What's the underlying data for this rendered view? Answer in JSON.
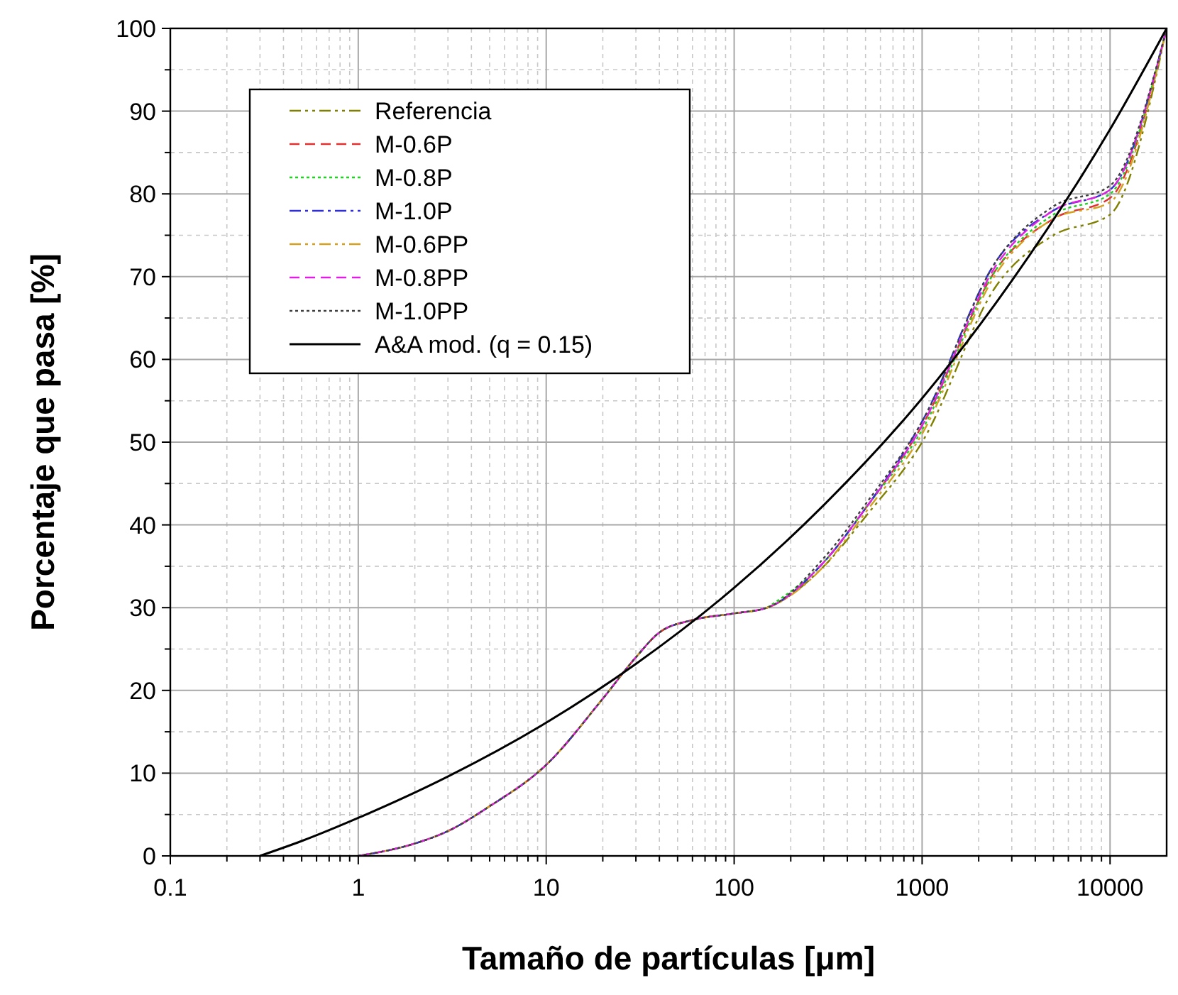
{
  "chart_data": {
    "type": "line",
    "xlabel": "Tamaño de partículas [μm]",
    "ylabel": "Porcentaje que pasa [%]",
    "log": "x",
    "grid": true,
    "legend": "top left",
    "xlim": [
      0.1,
      20000
    ],
    "xticks": [
      0.1,
      1,
      10,
      100,
      1000,
      10000
    ],
    "ylim": [
      0,
      100
    ],
    "yticks": [
      0,
      10,
      20,
      30,
      40,
      50,
      60,
      70,
      80,
      90,
      100
    ],
    "series": [
      {
        "name": "Referencia",
        "color": "#808000",
        "line_style": "dashdotdot",
        "x": [
          1,
          2,
          3,
          5,
          10,
          20,
          30,
          40,
          60,
          100,
          150,
          300,
          500,
          1000,
          2500,
          5000,
          10000,
          20000
        ],
        "values": [
          0,
          1.5,
          3,
          6,
          11,
          19,
          24,
          27,
          28.5,
          29.3,
          30,
          35,
          41,
          50,
          69,
          75,
          77.5,
          100
        ]
      },
      {
        "name": "M-0.6P",
        "color": "#e03030",
        "line_style": "dashed",
        "x": [
          1,
          2,
          3,
          5,
          10,
          20,
          30,
          40,
          60,
          100,
          150,
          300,
          500,
          1000,
          2500,
          5000,
          10000,
          20000
        ],
        "values": [
          0,
          1.5,
          3,
          6,
          11,
          19,
          24,
          27,
          28.5,
          29.3,
          30,
          35.5,
          42,
          52,
          71,
          77,
          79.5,
          100
        ]
      },
      {
        "name": "M-0.8P",
        "color": "#20d020",
        "line_style": "dotted",
        "x": [
          150,
          300,
          500,
          1000,
          2500,
          5000,
          10000,
          20000
        ],
        "values": [
          30,
          35.5,
          42,
          51.5,
          71,
          77.5,
          80,
          100
        ]
      },
      {
        "name": "M-1.0P",
        "color": "#3030d0",
        "line_style": "dashdot",
        "x": [
          1,
          2,
          3,
          5,
          10,
          20,
          30,
          40,
          60,
          100,
          150,
          300,
          500,
          1000,
          2500,
          5000,
          10000,
          20000
        ],
        "values": [
          0,
          1.5,
          3,
          6,
          11,
          19,
          24,
          27,
          28.5,
          29.3,
          30,
          35.5,
          42,
          52.5,
          72,
          78,
          80.5,
          100
        ]
      },
      {
        "name": "M-0.6PP",
        "color": "#d4a020",
        "line_style": "dashdotdot",
        "x": [
          1,
          2,
          3,
          5,
          10,
          20,
          30,
          40,
          60,
          100,
          150,
          300,
          500,
          1000,
          2500,
          5000,
          10000,
          20000
        ],
        "values": [
          0,
          1.5,
          3,
          6,
          11,
          19,
          24,
          27,
          28.5,
          29.3,
          30,
          35,
          41.5,
          51,
          70.5,
          77,
          79,
          100
        ]
      },
      {
        "name": "M-0.8PP",
        "color": "#e020e0",
        "line_style": "dashed",
        "x": [
          1,
          2,
          3,
          5,
          10,
          20,
          30,
          40,
          60,
          100,
          150,
          300,
          500,
          1000,
          2500,
          5000,
          10000,
          20000
        ],
        "values": [
          0,
          1.5,
          3,
          6,
          11,
          19,
          24,
          27,
          28.5,
          29.3,
          30,
          35.5,
          42,
          52,
          71.5,
          78,
          80.5,
          100
        ]
      },
      {
        "name": "M-1.0PP",
        "color": "#404040",
        "line_style": "dotted",
        "x": [
          1,
          2,
          3,
          5,
          10,
          20,
          30,
          40,
          60,
          100,
          150,
          300,
          500,
          1000,
          2500,
          5000,
          10000,
          20000
        ],
        "values": [
          0,
          1.5,
          3,
          6,
          11,
          19,
          24,
          27,
          28.5,
          29.3,
          30,
          36,
          42.5,
          52.5,
          72,
          78.5,
          81,
          100
        ]
      },
      {
        "name": "A&A mod. (q = 0.15)",
        "color": "#000000",
        "line_style": "solid",
        "x": [
          0.3,
          0.5,
          1,
          3,
          10,
          30,
          100,
          300,
          1000,
          3000,
          10000,
          20000
        ],
        "values": [
          0,
          1.8,
          4.6,
          9.6,
          16.1,
          23.2,
          32.4,
          42.4,
          55.3,
          69.5,
          87.8,
          100
        ]
      }
    ]
  }
}
